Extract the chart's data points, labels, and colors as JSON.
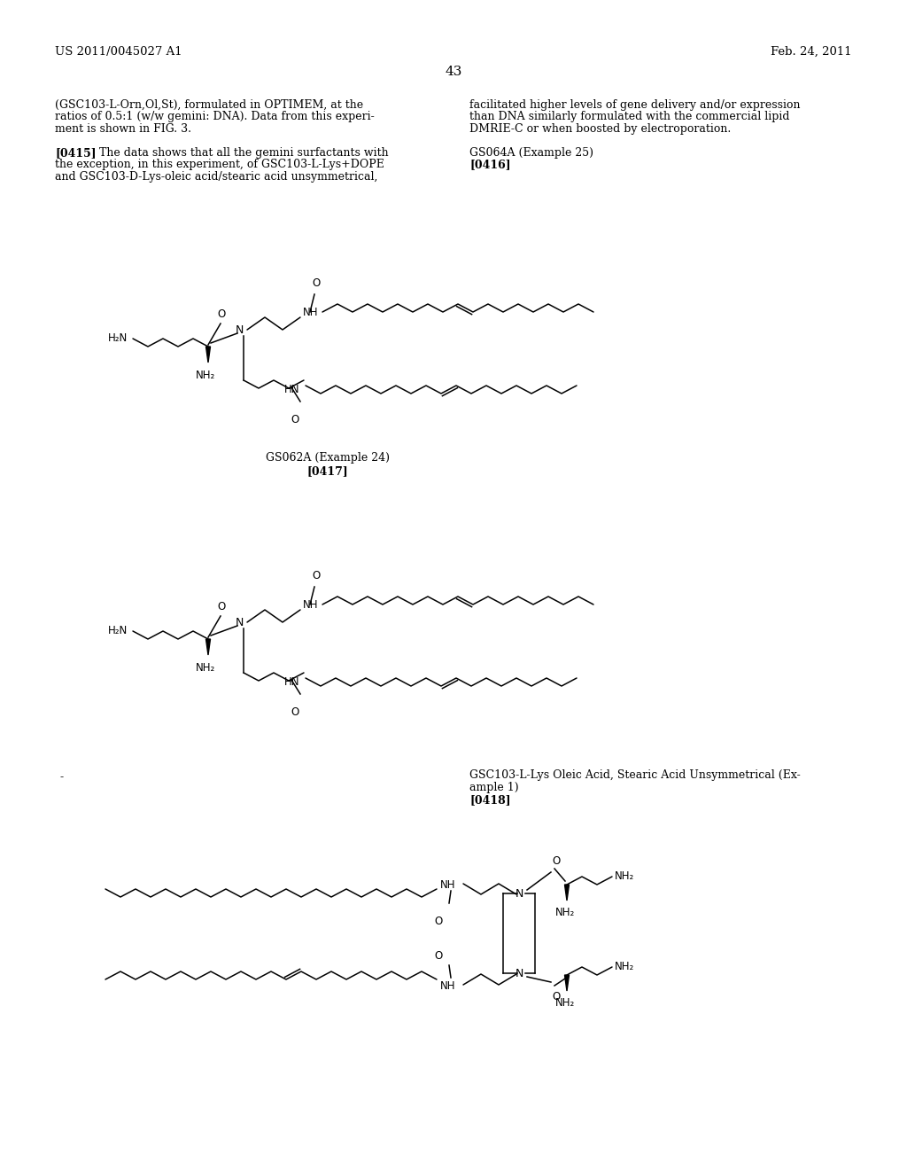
{
  "background_color": "#ffffff",
  "header_left": "US 2011/0045027 A1",
  "header_right": "Feb. 24, 2011",
  "page_number": "43",
  "left_col_lines": [
    "(GSC103-L-Orn,Ol,St), formulated in OPTIMEM, at the",
    "ratios of 0.5:1 (w/w gemini: DNA). Data from this experi-",
    "ment is shown in FIG. 3.",
    "",
    "[0415]",
    "the exception, in this experiment, of GSC103-L-Lys+DOPE",
    "and GSC103-D-Lys-oleic acid/stearic acid unsymmetrical,"
  ],
  "left_col_line4_rest": "    The data shows that all the gemini surfactants with",
  "right_col_lines": [
    "facilitated higher levels of gene delivery and/or expression",
    "than DNA similarly formulated with the commercial lipid",
    "DMRIE-C or when boosted by electroporation.",
    "",
    "GS064A (Example 25)",
    "[0416]"
  ],
  "label1": "GS062A (Example 24)",
  "label1_bold": "[0417]",
  "label2a": "GSC103-L-Lys Oleic Acid, Stearic Acid Unsymmetrical (Ex-",
  "label2b": "ample 1)",
  "label2_bold": "[0418]"
}
